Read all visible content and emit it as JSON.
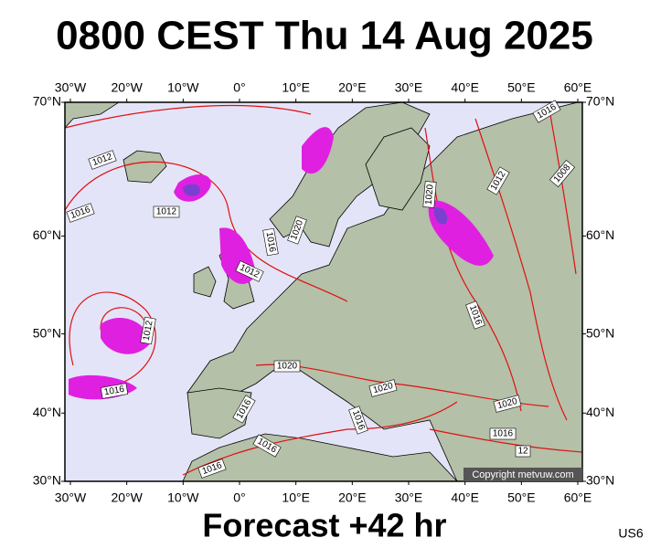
{
  "header": {
    "title": "0800 CEST Thu 14 Aug 2025"
  },
  "map": {
    "lon_ticks": [
      {
        "value": -30,
        "label": "30°W"
      },
      {
        "value": -20,
        "label": "20°W"
      },
      {
        "value": -10,
        "label": "10°W"
      },
      {
        "value": 0,
        "label": "0°"
      },
      {
        "value": 10,
        "label": "10°E"
      },
      {
        "value": 20,
        "label": "20°E"
      },
      {
        "value": 30,
        "label": "30°E"
      },
      {
        "value": 40,
        "label": "40°E"
      },
      {
        "value": 50,
        "label": "50°E"
      },
      {
        "value": 60,
        "label": "60°E"
      }
    ],
    "lat_ticks": [
      {
        "value": 70,
        "label": "70°N"
      },
      {
        "value": 60,
        "label": "60°N"
      },
      {
        "value": 50,
        "label": "50°N"
      },
      {
        "value": 40,
        "label": "40°N"
      },
      {
        "value": 30,
        "label": "30°N"
      }
    ],
    "isobar_labels": [
      "1012",
      "1016",
      "1012",
      "1016",
      "1020",
      "1012",
      "1012",
      "1016",
      "1020",
      "1020",
      "1016",
      "1016",
      "1016",
      "1016",
      "1020",
      "1012",
      "1008",
      "1016",
      "1016",
      "1020",
      "1016",
      "12"
    ],
    "copyright": "Copyright metvuw.com"
  },
  "footer": {
    "forecast": "Forecast +42 hr",
    "code": "US6"
  }
}
